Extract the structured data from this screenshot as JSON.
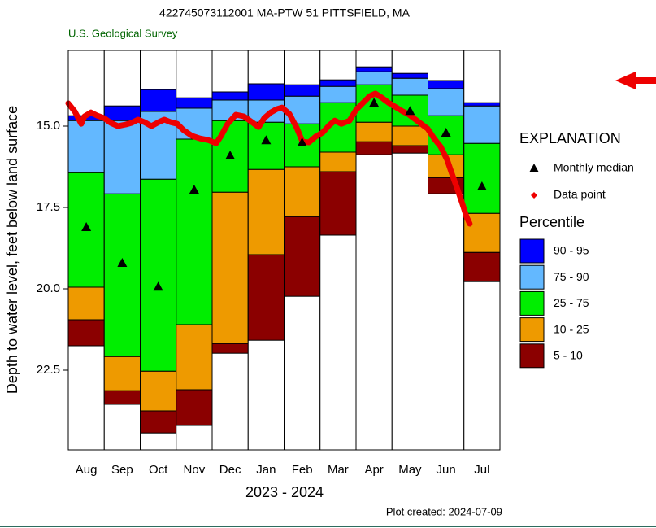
{
  "chart_data": {
    "type": "percentile_bar",
    "title": "422745073112001 MA-PTW   51 PITTSFIELD, MA",
    "subtitle": "U.S. Geological Survey",
    "ylabel": "Depth to water level, feet below land surface",
    "xlabel": "2023 - 2024",
    "note": "Plot created: 2024-07-09",
    "legend_title": "EXPLANATION",
    "percentile_title": "Percentile",
    "y_inverted": true,
    "ylim": [
      12.675,
      24.95
    ],
    "yticks": [
      {
        "value": 15,
        "label": "15.0"
      },
      17.5,
      {
        "value": 20,
        "label": "20.0"
      },
      22.5
    ],
    "categories": [
      "Aug",
      "Sep",
      "Oct",
      "Nov",
      "Dec",
      "Jan",
      "Feb",
      "Mar",
      "Apr",
      "May",
      "Jun",
      "Jul"
    ],
    "series": [
      {
        "name": "5 - 10",
        "color": "#8b0000"
      },
      {
        "name": "10 - 25",
        "color": "#ee9a00"
      },
      {
        "name": "25 - 75",
        "color": "#00ee00"
      },
      {
        "name": "75 - 90",
        "color": "#63b8ff"
      },
      {
        "name": "90 - 95",
        "color": "#0000ff"
      }
    ],
    "bounds": [
      [
        21.75,
        20.95,
        19.95,
        16.43,
        14.83,
        14.68
      ],
      [
        23.55,
        23.13,
        22.08,
        17.08,
        14.83,
        14.38
      ],
      [
        24.43,
        23.75,
        22.53,
        16.63,
        14.55,
        13.88
      ],
      [
        24.2,
        23.1,
        21.1,
        15.4,
        14.45,
        14.13
      ],
      [
        21.98,
        21.68,
        17.03,
        14.83,
        14.2,
        13.95
      ],
      [
        21.58,
        18.95,
        16.33,
        14.88,
        14.2,
        13.7
      ],
      [
        20.23,
        17.78,
        16.25,
        14.93,
        14.08,
        13.73
      ],
      [
        18.35,
        16.4,
        15.8,
        14.28,
        13.78,
        13.58
      ],
      [
        15.88,
        15.48,
        14.88,
        13.73,
        13.33,
        13.18
      ],
      [
        15.83,
        15.6,
        15.0,
        14.05,
        13.53,
        13.38
      ],
      [
        17.08,
        16.58,
        15.88,
        14.68,
        13.85,
        13.6
      ],
      [
        19.78,
        18.88,
        17.68,
        15.53,
        14.38,
        14.28
      ]
    ],
    "median": {
      "name": "Monthly median",
      "color": "#000000",
      "values": [
        18.1,
        19.2,
        19.93,
        16.95,
        15.9,
        15.43,
        15.5,
        null,
        14.28,
        14.53,
        15.2,
        16.85
      ]
    },
    "points": {
      "name": "Data point",
      "color": "#ee0000",
      "xlim": [
        0,
        12
      ],
      "x": [
        0,
        0.18,
        0.36,
        0.45,
        0.63,
        0.81,
        0.99,
        1.18,
        1.38,
        1.6,
        1.76,
        1.94,
        2.12,
        2.31,
        2.51,
        2.67,
        2.85,
        3.03,
        3.21,
        3.44,
        3.66,
        3.89,
        4.11,
        4.25,
        4.43,
        4.66,
        4.88,
        5.11,
        5.29,
        5.45,
        5.63,
        5.79,
        5.94,
        6.15,
        6.35,
        6.51,
        6.69,
        6.87,
        7.07,
        7.25,
        7.41,
        7.59,
        7.82,
        8.0,
        8.18,
        8.38,
        8.54,
        8.72,
        8.9,
        9.08,
        9.27,
        9.45,
        9.63,
        9.81,
        9.99,
        10.17,
        10.35,
        10.53,
        10.67,
        10.8,
        10.94,
        11.07,
        11.16
      ],
      "values": [
        14.3,
        14.55,
        14.93,
        14.7,
        14.58,
        14.68,
        14.75,
        14.9,
        15.0,
        14.95,
        14.9,
        14.8,
        14.88,
        15.0,
        14.88,
        14.8,
        14.88,
        14.93,
        15.13,
        15.3,
        15.38,
        15.43,
        15.53,
        15.3,
        14.93,
        14.65,
        14.7,
        14.88,
        15.03,
        14.75,
        14.58,
        14.48,
        14.43,
        14.63,
        15.05,
        15.48,
        15.5,
        15.33,
        15.2,
        14.98,
        14.83,
        14.93,
        14.83,
        14.5,
        14.3,
        14.08,
        14.0,
        14.13,
        14.28,
        14.4,
        14.53,
        14.63,
        14.78,
        14.93,
        15.08,
        15.38,
        15.63,
        16.03,
        16.48,
        16.88,
        17.33,
        17.78,
        18.0
      ]
    }
  }
}
